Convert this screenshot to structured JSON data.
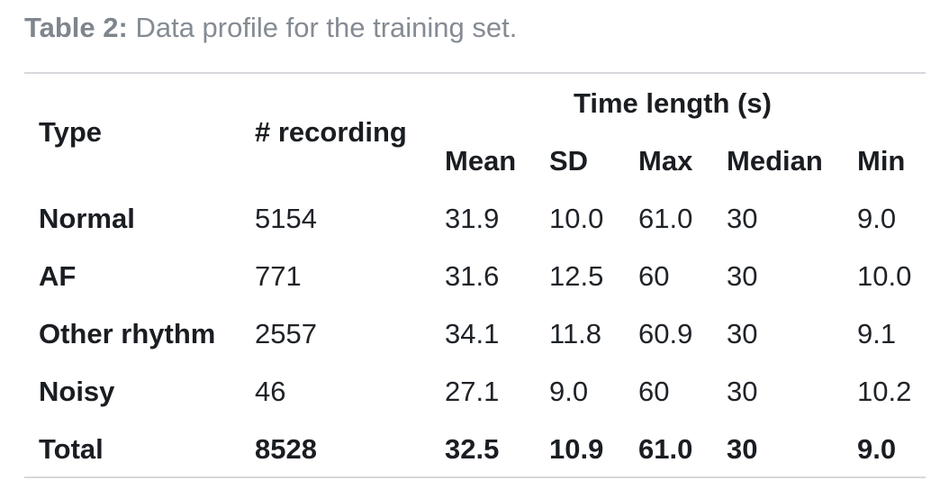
{
  "caption": {
    "label": "Table 2:",
    "text": " Data profile for the training set."
  },
  "table": {
    "headers": {
      "type": "Type",
      "recording": "# recording",
      "group": "Time length (s)",
      "sub": [
        "Mean",
        "SD",
        "Max",
        "Median",
        "Min"
      ]
    },
    "rows": [
      [
        "Normal",
        "5154",
        "31.9",
        "10.0",
        "61.0",
        "30",
        "9.0"
      ],
      [
        "AF",
        "771",
        "31.6",
        "12.5",
        "60",
        "30",
        "10.0"
      ],
      [
        "Other rhythm",
        "2557",
        "34.1",
        "11.8",
        "60.9",
        "30",
        "9.1"
      ],
      [
        "Noisy",
        "46",
        "27.1",
        "9.0",
        "60",
        "30",
        "10.2"
      ],
      [
        "Total",
        "8528",
        "32.5",
        "10.9",
        "61.0",
        "30",
        "9.0"
      ]
    ]
  }
}
